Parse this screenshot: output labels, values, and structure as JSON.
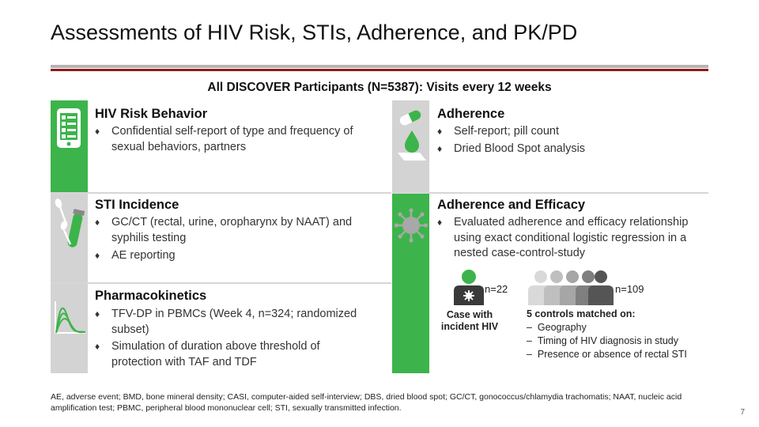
{
  "title": "Assessments of HIV Risk, STIs, Adherence, and PK/PD",
  "subtitle": "All DISCOVER Participants (N=5387): Visits every 12 weeks",
  "bullet_char": "♦",
  "sections": {
    "hiv_risk": {
      "heading": "HIV Risk Behavior",
      "bullets": [
        "Confidential self-report of type and frequency of sexual behaviors, partners"
      ],
      "icon": "tablet-checklist-icon"
    },
    "adherence": {
      "heading": "Adherence",
      "bullets": [
        "Self-report; pill count",
        "Dried Blood Spot analysis"
      ],
      "icon": "pill-drop-icon"
    },
    "sti": {
      "heading": "STI Incidence",
      "bullets": [
        "GC/CT (rectal, urine, oropharynx by NAAT) and syphilis testing",
        "AE reporting"
      ],
      "icon": "swab-tube-icon"
    },
    "efficacy": {
      "heading": "Adherence and Efficacy",
      "bullets": [
        "Evaluated adherence and efficacy relationship using exact conditional logistic regression in a nested case-control-study"
      ],
      "icon": "virus-icon"
    },
    "pk": {
      "heading": "Pharmacokinetics",
      "bullets": [
        "TFV-DP in PBMCs (Week 4, n=324; randomized subset)",
        "Simulation of duration above threshold of protection with TAF and TDF"
      ],
      "icon": "pk-curve-icon"
    }
  },
  "case_control": {
    "case_n": "n=22",
    "case_label": "Case with incident HIV",
    "control_n": "n=109",
    "control_heading": "5 controls matched on:",
    "dash": "–",
    "control_items": [
      "Geography",
      "Timing of HIV diagnosis in study",
      "Presence or absence of rectal STI"
    ]
  },
  "footnote": "AE, adverse event; BMD, bone mineral density; CASI, computer-aided self-interview; DBS, dried blood spot; GC/CT, gonococcus/chlamydia trachomatis; NAAT, nucleic acid amplification test; PBMC, peripheral blood mononuclear cell; STI, sexually transmitted infection.",
  "page_number": "7",
  "colors": {
    "accent_green": "#3cb44b",
    "accent_red": "#8b1a1a",
    "icon_gray": "#d3d3d3"
  }
}
